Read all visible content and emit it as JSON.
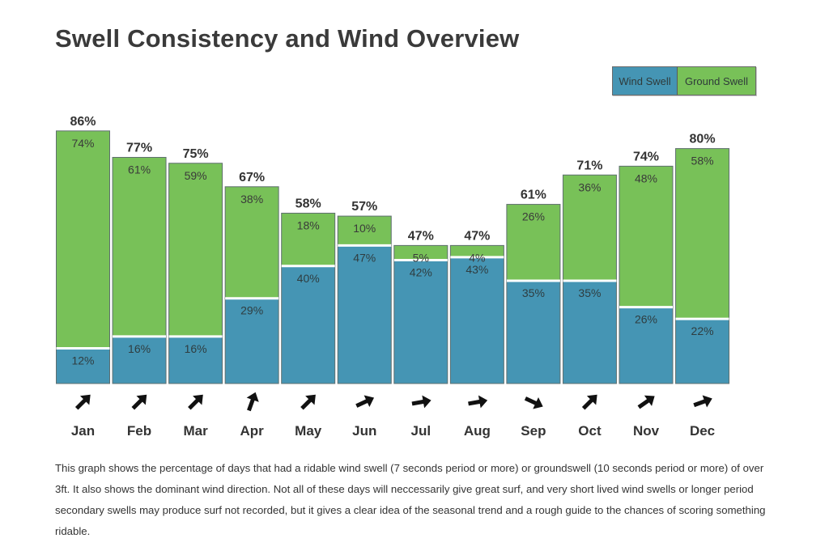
{
  "title": "Swell Consistency and Wind Overview",
  "legend": {
    "wind": "Wind Swell",
    "ground": "Ground Swell"
  },
  "colors": {
    "wind": "#4595b4",
    "ground": "#78c158",
    "border": "#5f6f6f",
    "arrow": "#111111"
  },
  "chart_data": {
    "type": "bar",
    "stacked": true,
    "categories": [
      "Jan",
      "Feb",
      "Mar",
      "Apr",
      "May",
      "Jun",
      "Jul",
      "Aug",
      "Sep",
      "Oct",
      "Nov",
      "Dec"
    ],
    "totals": [
      "86%",
      "77%",
      "75%",
      "67%",
      "58%",
      "57%",
      "47%",
      "47%",
      "61%",
      "71%",
      "74%",
      "80%"
    ],
    "series": [
      {
        "name": "Wind Swell",
        "values": [
          12,
          16,
          16,
          29,
          40,
          47,
          42,
          43,
          35,
          35,
          26,
          22
        ],
        "labels": [
          "12%",
          "16%",
          "16%",
          "29%",
          "40%",
          "47%",
          "42%",
          "43%",
          "35%",
          "35%",
          "26%",
          "22%"
        ]
      },
      {
        "name": "Ground Swell",
        "values": [
          74,
          61,
          59,
          38,
          18,
          10,
          5,
          4,
          26,
          36,
          48,
          58
        ],
        "labels": [
          "74%",
          "61%",
          "59%",
          "38%",
          "18%",
          "10%",
          "5%",
          "4%",
          "26%",
          "36%",
          "48%",
          "58%"
        ]
      }
    ],
    "wind_direction_deg": [
      45,
      45,
      45,
      70,
      45,
      25,
      10,
      10,
      -25,
      45,
      35,
      20
    ],
    "ylim": [
      0,
      100
    ]
  },
  "description": "This graph shows the percentage of days that had a ridable wind swell (7 seconds period or more) or groundswell (10 seconds period or more) of over 3ft. It also shows the dominant wind direction. Not all of these days will neccessarily give great surf, and very short lived wind swells or longer period secondary swells may produce surf not recorded, but it gives a clear idea of the seasonal trend and a rough guide to the chances of scoring something ridable."
}
